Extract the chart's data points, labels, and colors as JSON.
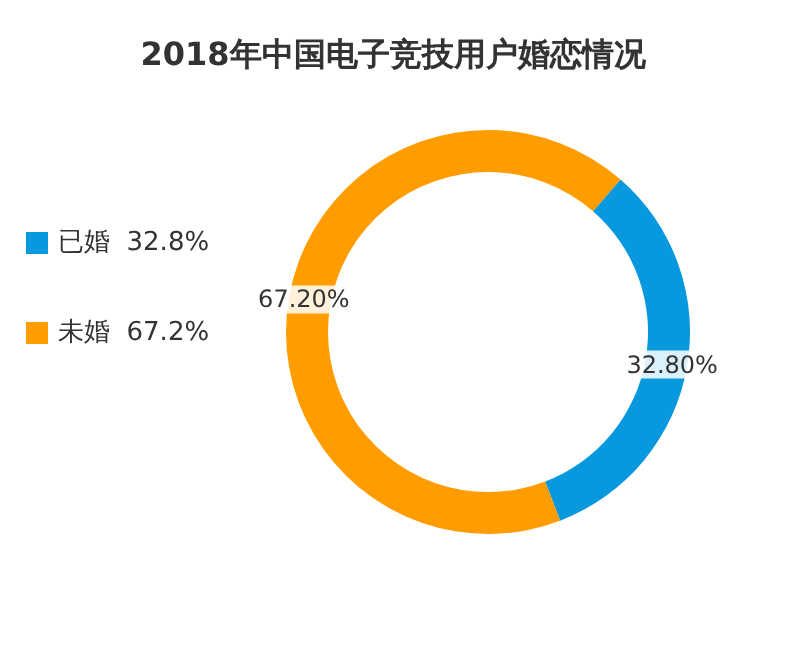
{
  "chart_data": {
    "type": "donut",
    "title": "2018年中国电子竞技用户婚恋情况",
    "categories": [
      "已婚  32.8%",
      "未婚  67.2%"
    ],
    "values": [
      32.8,
      67.2
    ],
    "colors": [
      "#0798de",
      "#ff9c00"
    ],
    "value_labels": [
      "32.80%",
      "67.20%"
    ],
    "legend": "left"
  }
}
